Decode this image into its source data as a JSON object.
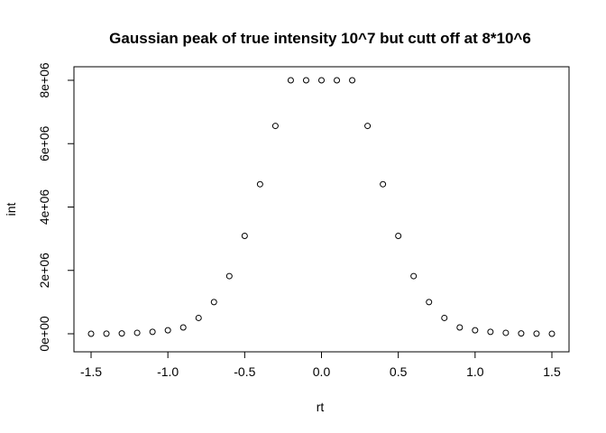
{
  "chart_data": {
    "type": "scatter",
    "title": "Gaussian peak of true intensity 10^7 but cutt off at 8*10^6",
    "xlabel": "rt",
    "ylabel": "int",
    "xlim": [
      -1.5,
      1.5
    ],
    "ylim": [
      0,
      8000000
    ],
    "grid": false,
    "x_ticks": [
      -1.5,
      -1.0,
      -0.5,
      0.0,
      0.5,
      1.0,
      1.5
    ],
    "x_tick_labels": [
      "-1.5",
      "-1.0",
      "-0.5",
      "0.0",
      "0.5",
      "1.0",
      "1.5"
    ],
    "y_ticks": [
      0,
      2000000,
      4000000,
      6000000,
      8000000
    ],
    "y_tick_labels": [
      "0e+00",
      "2e+06",
      "4e+06",
      "6e+06",
      "8e+06"
    ],
    "series": [
      {
        "x": [
          -1.5,
          -1.4,
          -1.3,
          -1.2,
          -1.1,
          -1.0,
          -0.9,
          -0.8,
          -0.7,
          -0.6,
          -0.5,
          -0.4,
          -0.3,
          -0.2,
          -0.1,
          0.0,
          0.1,
          0.2,
          0.3,
          0.4,
          0.5,
          0.6,
          0.7,
          0.8,
          0.9,
          1.0,
          1.1,
          1.2,
          1.3,
          1.4,
          1.5
        ],
        "y": [
          1000,
          4000,
          10000,
          30000,
          60000,
          110000,
          200000,
          500000,
          1000000,
          1820000,
          3090000,
          4720000,
          6560000,
          8000000,
          8000000,
          8000000,
          8000000,
          8000000,
          6560000,
          4720000,
          3090000,
          1820000,
          1000000,
          500000,
          200000,
          110000,
          60000,
          30000,
          10000,
          4000,
          1000
        ]
      }
    ],
    "marker_color": "#000000"
  }
}
